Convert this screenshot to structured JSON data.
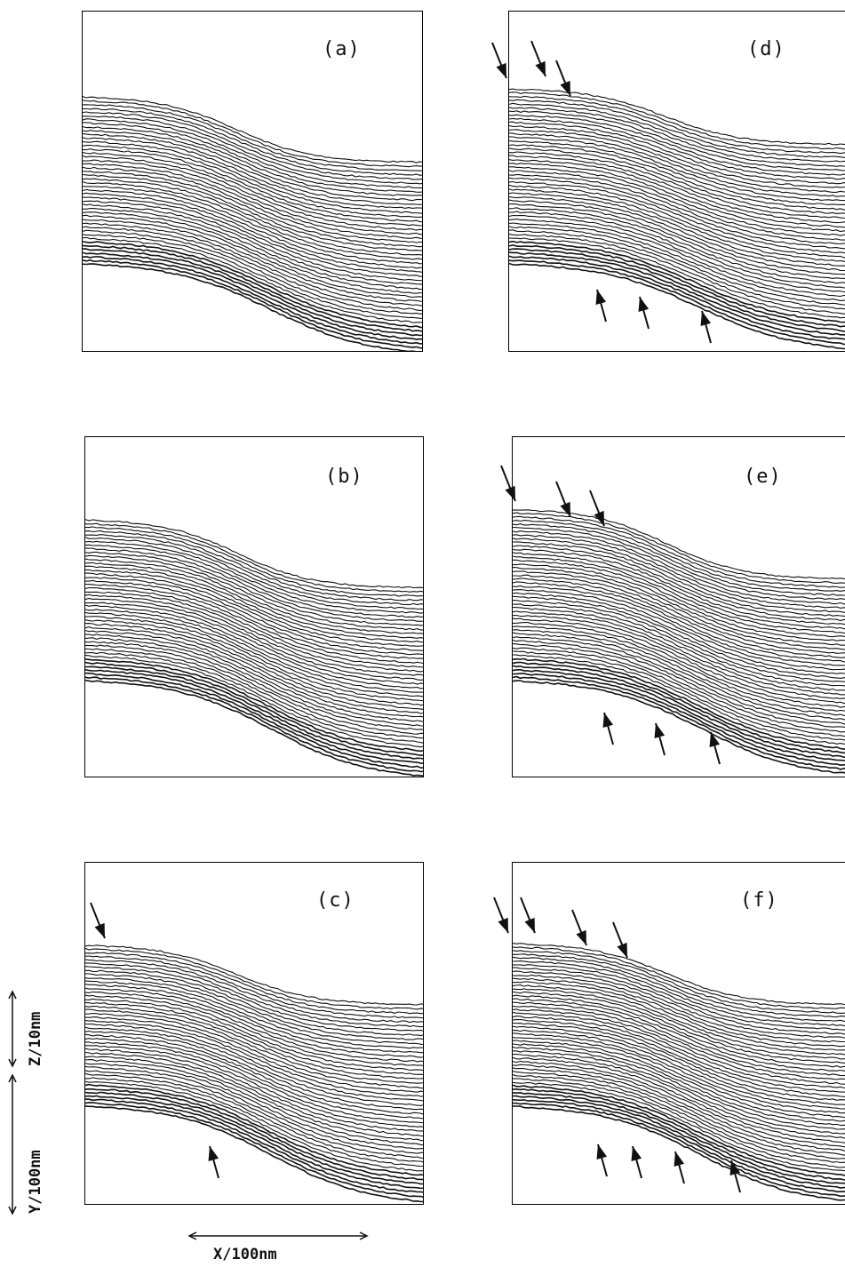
{
  "figure": {
    "panels": [
      {
        "id": "a",
        "label": "(a)",
        "arrows_top": 0,
        "arrows_bottom": 0
      },
      {
        "id": "b",
        "label": "(b)",
        "arrows_top": 0,
        "arrows_bottom": 0
      },
      {
        "id": "c",
        "label": "(c)",
        "arrows_top": 1,
        "arrows_bottom": 1
      },
      {
        "id": "d",
        "label": "(d)",
        "arrows_top": 3,
        "arrows_bottom": 3
      },
      {
        "id": "e",
        "label": "(e)",
        "arrows_top": 3,
        "arrows_bottom": 3
      },
      {
        "id": "f",
        "label": "(f)",
        "arrows_top": 4,
        "arrows_bottom": 4
      }
    ],
    "scale_bars": {
      "z": "Z/10nm",
      "y": "Y/100nm",
      "x": "X/100nm"
    },
    "colors": {
      "ink": "#111111",
      "background": "#ffffff"
    }
  }
}
